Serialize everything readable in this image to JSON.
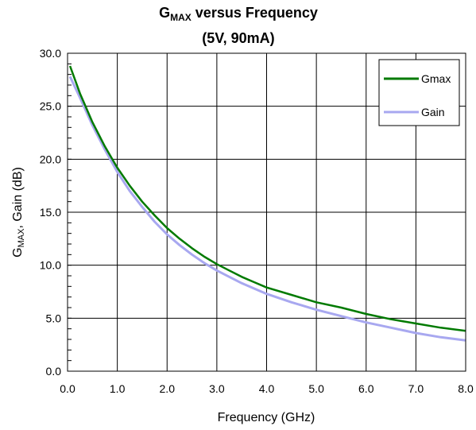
{
  "chart_data": {
    "type": "line",
    "title_main": "G",
    "title_sub": "MAX",
    "title_rest": " versus Frequency",
    "subtitle": "(5V, 90mA)",
    "xlabel": "Frequency (GHz)",
    "ylabel_main": "G",
    "ylabel_sub": "MAX",
    "ylabel_rest": ", Gain (dB)",
    "xlim": [
      0,
      8
    ],
    "ylim": [
      0,
      30
    ],
    "x_ticks": [
      "0.0",
      "1.0",
      "2.0",
      "3.0",
      "4.0",
      "5.0",
      "6.0",
      "7.0",
      "8.0"
    ],
    "y_ticks": [
      "0.0",
      "5.0",
      "10.0",
      "15.0",
      "20.0",
      "25.0",
      "30.0"
    ],
    "grid": true,
    "legend_position": "top-right",
    "series": [
      {
        "name": "Gmax",
        "color": "#007a00",
        "x": [
          0.05,
          0.25,
          0.5,
          0.75,
          1.0,
          1.25,
          1.5,
          1.75,
          2.0,
          2.25,
          2.5,
          2.75,
          3.0,
          3.25,
          3.5,
          3.75,
          4.0,
          4.5,
          5.0,
          5.5,
          6.0,
          6.5,
          7.0,
          7.5,
          8.0
        ],
        "y": [
          28.8,
          26.2,
          23.5,
          21.2,
          19.2,
          17.5,
          16.0,
          14.7,
          13.5,
          12.5,
          11.6,
          10.8,
          10.1,
          9.5,
          8.9,
          8.4,
          7.9,
          7.2,
          6.5,
          6.0,
          5.4,
          4.9,
          4.5,
          4.1,
          3.8
        ]
      },
      {
        "name": "Gain",
        "color": "#a8a8f0",
        "x": [
          0.05,
          0.25,
          0.5,
          0.75,
          1.0,
          1.25,
          1.5,
          1.75,
          2.0,
          2.25,
          2.5,
          2.75,
          3.0,
          3.25,
          3.5,
          3.75,
          4.0,
          4.5,
          5.0,
          5.5,
          6.0,
          6.5,
          7.0,
          7.5,
          8.0
        ],
        "y": [
          27.8,
          25.8,
          23.2,
          20.9,
          18.8,
          17.0,
          15.5,
          14.1,
          12.9,
          11.9,
          11.0,
          10.2,
          9.5,
          8.9,
          8.3,
          7.8,
          7.3,
          6.5,
          5.8,
          5.2,
          4.6,
          4.1,
          3.6,
          3.2,
          2.9
        ]
      }
    ]
  }
}
